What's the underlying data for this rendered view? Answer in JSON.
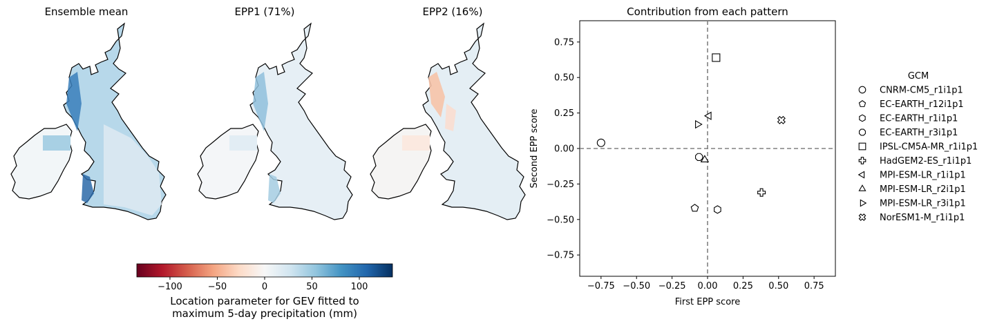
{
  "maps": {
    "titles": [
      "Ensemble mean",
      "EPP1 (71%)",
      "EPP2 (16%)"
    ]
  },
  "colorbar": {
    "ticks": [
      -100,
      -50,
      0,
      50,
      100
    ],
    "range": [
      -135,
      135
    ],
    "label_line1": "Location parameter for GEV fitted to",
    "label_line2": "maximum 5-day precipitation (mm)",
    "colormap": "RdBu",
    "colors": [
      "#67001f",
      "#b2182b",
      "#d6604d",
      "#f4a582",
      "#fddbc7",
      "#f7f7f7",
      "#d1e5f0",
      "#92c5de",
      "#4393c3",
      "#2166ac",
      "#053061"
    ]
  },
  "chart_data": {
    "type": "scatter",
    "title": "Contribution from each pattern",
    "xlabel": "First EPP score",
    "ylabel": "Second EPP score",
    "xlim": [
      -0.9,
      0.9
    ],
    "ylim": [
      -0.9,
      0.9
    ],
    "xticks": [
      "−0.75",
      "−0.50",
      "−0.25",
      "0.00",
      "0.25",
      "0.50",
      "0.75"
    ],
    "yticks": [
      "0.75",
      "0.50",
      "0.25",
      "0.00",
      "−0.25",
      "−0.50",
      "−0.75"
    ],
    "xtick_values": [
      -0.75,
      -0.5,
      -0.25,
      0,
      0.25,
      0.5,
      0.75
    ],
    "ytick_values": [
      0.75,
      0.5,
      0.25,
      0,
      -0.25,
      -0.5,
      -0.75
    ],
    "reference_lines": {
      "x": 0,
      "y": 0,
      "style": "dashed",
      "color": "#808080"
    },
    "grid": false,
    "legend_title": "GCM",
    "legend_position": "outside-right",
    "series": [
      {
        "name": "CNRM-CM5_r1i1p1",
        "marker": "circle",
        "x": -0.75,
        "y": 0.04
      },
      {
        "name": "EC-EARTH_r12i1p1",
        "marker": "pentagon",
        "x": -0.09,
        "y": -0.42
      },
      {
        "name": "EC-EARTH_r1i1p1",
        "marker": "hexagon",
        "x": 0.07,
        "y": -0.43
      },
      {
        "name": "EC-EARTH_r3i1p1",
        "marker": "octagon",
        "x": -0.06,
        "y": -0.06
      },
      {
        "name": "IPSL-CM5A-MR_r1i1p1",
        "marker": "square",
        "x": 0.06,
        "y": 0.64
      },
      {
        "name": "HadGEM2-ES_r1i1p1",
        "marker": "plus",
        "x": 0.38,
        "y": -0.31
      },
      {
        "name": "MPI-ESM-LR_r1i1p1",
        "marker": "triangle-left",
        "x": 0.01,
        "y": 0.23
      },
      {
        "name": "MPI-ESM-LR_r2i1p1",
        "marker": "triangle-up",
        "x": -0.02,
        "y": -0.08
      },
      {
        "name": "MPI-ESM-LR_r3i1p1",
        "marker": "triangle-right",
        "x": -0.07,
        "y": 0.17
      },
      {
        "name": "NorESM1-M_r1i1p1",
        "marker": "x-filled",
        "x": 0.52,
        "y": 0.2
      }
    ]
  }
}
